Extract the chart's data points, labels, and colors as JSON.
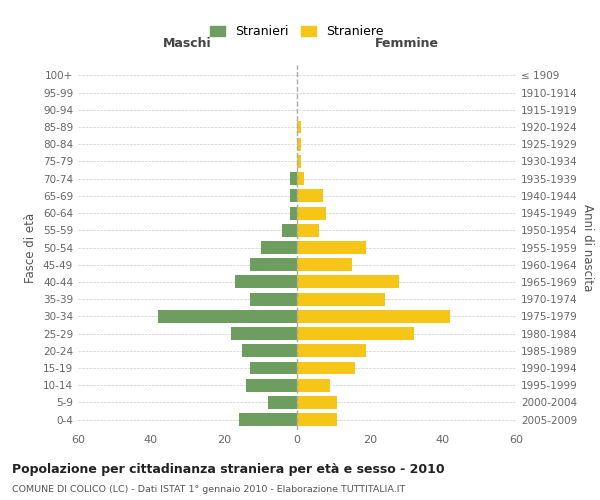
{
  "age_groups": [
    "0-4",
    "5-9",
    "10-14",
    "15-19",
    "20-24",
    "25-29",
    "30-34",
    "35-39",
    "40-44",
    "45-49",
    "50-54",
    "55-59",
    "60-64",
    "65-69",
    "70-74",
    "75-79",
    "80-84",
    "85-89",
    "90-94",
    "95-99",
    "100+"
  ],
  "birth_years": [
    "2005-2009",
    "2000-2004",
    "1995-1999",
    "1990-1994",
    "1985-1989",
    "1980-1984",
    "1975-1979",
    "1970-1974",
    "1965-1969",
    "1960-1964",
    "1955-1959",
    "1950-1954",
    "1945-1949",
    "1940-1944",
    "1935-1939",
    "1930-1934",
    "1925-1929",
    "1920-1924",
    "1915-1919",
    "1910-1914",
    "≤ 1909"
  ],
  "maschi": [
    16,
    8,
    14,
    13,
    15,
    18,
    38,
    13,
    17,
    13,
    10,
    4,
    2,
    2,
    2,
    0,
    0,
    0,
    0,
    0,
    0
  ],
  "femmine": [
    11,
    11,
    9,
    16,
    19,
    32,
    42,
    24,
    28,
    15,
    19,
    6,
    8,
    7,
    2,
    1,
    1,
    1,
    0,
    0,
    0
  ],
  "maschi_color": "#6e9e5f",
  "femmine_color": "#f5c518",
  "title": "Popolazione per cittadinanza straniera per età e sesso - 2010",
  "subtitle": "COMUNE DI COLICO (LC) - Dati ISTAT 1° gennaio 2010 - Elaborazione TUTTITALIA.IT",
  "xlabel_left": "Maschi",
  "xlabel_right": "Femmine",
  "ylabel_left": "Fasce di età",
  "ylabel_right": "Anni di nascita",
  "legend_stranieri": "Stranieri",
  "legend_straniere": "Straniere",
  "xlim": 60,
  "background_color": "#ffffff",
  "grid_color": "#cccccc"
}
